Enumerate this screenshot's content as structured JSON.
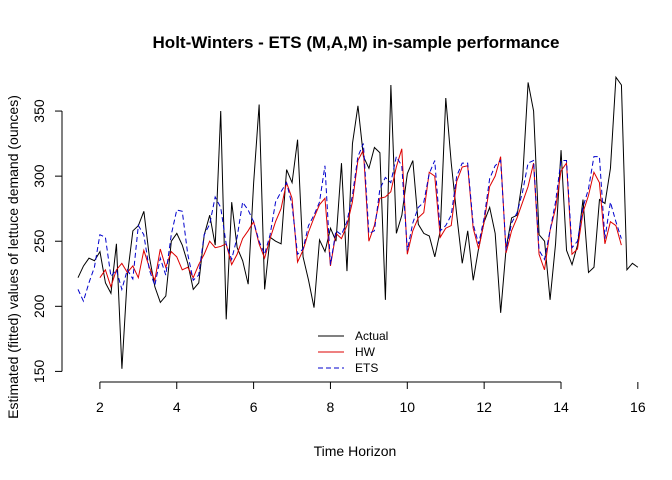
{
  "chart_data": {
    "type": "line",
    "title": "Holt-Winters - ETS (M,A,M) in-sample performance",
    "xlabel": "Time Horizon",
    "ylabel": "Estimated (fitted) values of lettuce demand (ounces)",
    "xlim": [
      1.43,
      15.9
    ],
    "ylim": [
      148,
      380
    ],
    "xticks": [
      2,
      4,
      6,
      8,
      10,
      12,
      14,
      16
    ],
    "yticks": [
      150,
      200,
      250,
      300,
      350
    ],
    "grid": false,
    "legend": {
      "placement": "bottom-center",
      "entries": [
        {
          "label": "Actual",
          "color": "#000000",
          "dash": "solid"
        },
        {
          "label": "HW",
          "color": "#dd0000",
          "dash": "solid"
        },
        {
          "label": "ETS",
          "color": "#0000cc",
          "dash": "dashed"
        }
      ]
    },
    "x_start": 1.43,
    "x_step": 0.142857,
    "series": [
      {
        "name": "Actual",
        "color": "#000000",
        "dash": "solid",
        "values": [
          222,
          231,
          237,
          235,
          242,
          218,
          210,
          248,
          152,
          224,
          258,
          262,
          273,
          238,
          215,
          203,
          208,
          250,
          256,
          247,
          233,
          213,
          218,
          255,
          270,
          247,
          350,
          190,
          280,
          245,
          235,
          217,
          295,
          355,
          213,
          253,
          250,
          248,
          305,
          295,
          328,
          238,
          220,
          199,
          251,
          242,
          260,
          250,
          310,
          227,
          325,
          354,
          315,
          306,
          322,
          318,
          205,
          370,
          256,
          270,
          302,
          312,
          263,
          256,
          254,
          238,
          258,
          360,
          310,
          270,
          233,
          258,
          220,
          245,
          265,
          276,
          256,
          195,
          245,
          268,
          270,
          298,
          372,
          350,
          255,
          250,
          205,
          248,
          320,
          243,
          232,
          247,
          282,
          226,
          230,
          282,
          279,
          306,
          376,
          370,
          228,
          233,
          230
        ]
      },
      {
        "name": "HW",
        "color": "#dd0000",
        "dash": "solid",
        "values": [
          null,
          null,
          null,
          null,
          null,
          null,
          null,
          null,
          null,
          null,
          null,
          null,
          null,
          null,
          null,
          null,
          null,
          null,
          null,
          null,
          null,
          null,
          null,
          null,
          null,
          null,
          null,
          null,
          null,
          null,
          null,
          null,
          null,
          null,
          null,
          null,
          null,
          null,
          null,
          null,
          null,
          null,
          null,
          null,
          null,
          null,
          null,
          null,
          null,
          null,
          null,
          null,
          null,
          null,
          null,
          null,
          null,
          null,
          null,
          null,
          null,
          null,
          null,
          null,
          null,
          null,
          null,
          null,
          null,
          null,
          null,
          null,
          null,
          null,
          null,
          null,
          null,
          null,
          null,
          null,
          null,
          null,
          null,
          null,
          null,
          null,
          null,
          null,
          null,
          null,
          null,
          null,
          null,
          null,
          null,
          null,
          null,
          null,
          null,
          null,
          null,
          null,
          null
        ],
        "values_list": [
          [
            2.0,
            222
          ],
          [
            2.143,
            228
          ],
          [
            2.286,
            215
          ],
          [
            2.429,
            228
          ],
          [
            2.571,
            233
          ],
          [
            2.714,
            226
          ],
          [
            2.857,
            231
          ],
          [
            3.0,
            222
          ],
          [
            3.143,
            243
          ],
          [
            3.286,
            230
          ],
          [
            3.429,
            220
          ],
          [
            3.571,
            244
          ],
          [
            3.714,
            230
          ],
          [
            3.857,
            242
          ],
          [
            4.0,
            238
          ],
          [
            4.143,
            228
          ],
          [
            4.286,
            230
          ],
          [
            4.429,
            222
          ],
          [
            4.571,
            232
          ],
          [
            4.714,
            240
          ],
          [
            4.857,
            250
          ],
          [
            5.0,
            245
          ],
          [
            5.143,
            246
          ],
          [
            5.286,
            248
          ],
          [
            5.429,
            232
          ],
          [
            5.571,
            240
          ],
          [
            5.714,
            252
          ],
          [
            5.857,
            258
          ],
          [
            6.0,
            265
          ],
          [
            6.143,
            248
          ],
          [
            6.286,
            237
          ],
          [
            6.429,
            252
          ],
          [
            6.571,
            265
          ],
          [
            6.714,
            275
          ],
          [
            6.857,
            295
          ],
          [
            7.0,
            283
          ],
          [
            7.143,
            234
          ],
          [
            7.286,
            243
          ],
          [
            7.429,
            257
          ],
          [
            7.571,
            268
          ],
          [
            7.714,
            278
          ],
          [
            7.857,
            283
          ],
          [
            8.0,
            231
          ],
          [
            8.143,
            256
          ],
          [
            8.286,
            252
          ],
          [
            8.429,
            262
          ],
          [
            8.571,
            280
          ],
          [
            8.714,
            312
          ],
          [
            8.857,
            320
          ],
          [
            9.0,
            250
          ],
          [
            9.143,
            262
          ],
          [
            9.286,
            283
          ],
          [
            9.429,
            284
          ],
          [
            9.571,
            288
          ],
          [
            9.714,
            307
          ],
          [
            9.857,
            321
          ],
          [
            10.0,
            240
          ],
          [
            10.143,
            258
          ],
          [
            10.286,
            268
          ],
          [
            10.429,
            272
          ],
          [
            10.571,
            303
          ],
          [
            10.714,
            300
          ],
          [
            10.857,
            253
          ],
          [
            11.0,
            260
          ],
          [
            11.143,
            262
          ],
          [
            11.286,
            296
          ],
          [
            11.429,
            307
          ],
          [
            11.571,
            308
          ],
          [
            11.714,
            260
          ],
          [
            11.857,
            244
          ],
          [
            12.0,
            265
          ],
          [
            12.143,
            292
          ],
          [
            12.286,
            300
          ],
          [
            12.429,
            315
          ],
          [
            12.571,
            241
          ],
          [
            12.714,
            258
          ],
          [
            12.857,
            268
          ],
          [
            13.0,
            280
          ],
          [
            13.143,
            292
          ],
          [
            13.286,
            310
          ],
          [
            13.429,
            240
          ],
          [
            13.571,
            228
          ],
          [
            13.714,
            258
          ],
          [
            13.857,
            275
          ],
          [
            14.0,
            304
          ],
          [
            14.143,
            310
          ],
          [
            14.286,
            240
          ],
          [
            14.429,
            244
          ],
          [
            14.571,
            272
          ],
          [
            14.714,
            285
          ],
          [
            14.857,
            303
          ],
          [
            15.0,
            295
          ],
          [
            15.143,
            248
          ],
          [
            15.286,
            265
          ],
          [
            15.429,
            262
          ],
          [
            15.571,
            247
          ]
        ]
      },
      {
        "name": "ETS",
        "color": "#0000cc",
        "dash": "dashed",
        "values_list": [
          [
            1.43,
            213
          ],
          [
            1.571,
            204
          ],
          [
            1.714,
            218
          ],
          [
            1.857,
            230
          ],
          [
            2.0,
            255
          ],
          [
            2.143,
            253
          ],
          [
            2.286,
            223
          ],
          [
            2.429,
            228
          ],
          [
            2.571,
            213
          ],
          [
            2.714,
            228
          ],
          [
            2.857,
            221
          ],
          [
            3.0,
            262
          ],
          [
            3.143,
            255
          ],
          [
            3.286,
            228
          ],
          [
            3.429,
            216
          ],
          [
            3.571,
            237
          ],
          [
            3.714,
            224
          ],
          [
            3.857,
            255
          ],
          [
            4.0,
            274
          ],
          [
            4.143,
            273
          ],
          [
            4.286,
            240
          ],
          [
            4.429,
            220
          ],
          [
            4.571,
            224
          ],
          [
            4.714,
            255
          ],
          [
            4.857,
            263
          ],
          [
            5.0,
            284
          ],
          [
            5.143,
            276
          ],
          [
            5.286,
            248
          ],
          [
            5.429,
            236
          ],
          [
            5.571,
            253
          ],
          [
            5.714,
            280
          ],
          [
            5.857,
            274
          ],
          [
            6.0,
            265
          ],
          [
            6.143,
            250
          ],
          [
            6.286,
            240
          ],
          [
            6.429,
            255
          ],
          [
            6.571,
            280
          ],
          [
            6.714,
            288
          ],
          [
            6.857,
            295
          ],
          [
            7.0,
            278
          ],
          [
            7.143,
            240
          ],
          [
            7.286,
            244
          ],
          [
            7.429,
            262
          ],
          [
            7.571,
            270
          ],
          [
            7.714,
            280
          ],
          [
            7.857,
            308
          ],
          [
            8.0,
            232
          ],
          [
            8.143,
            258
          ],
          [
            8.286,
            255
          ],
          [
            8.429,
            265
          ],
          [
            8.571,
            285
          ],
          [
            8.714,
            315
          ],
          [
            8.857,
            325
          ],
          [
            9.0,
            256
          ],
          [
            9.143,
            258
          ],
          [
            9.286,
            290
          ],
          [
            9.429,
            299
          ],
          [
            9.571,
            295
          ],
          [
            9.714,
            315
          ],
          [
            9.857,
            308
          ],
          [
            10.0,
            243
          ],
          [
            10.143,
            264
          ],
          [
            10.286,
            276
          ],
          [
            10.429,
            280
          ],
          [
            10.571,
            302
          ],
          [
            10.714,
            312
          ],
          [
            10.857,
            258
          ],
          [
            11.0,
            262
          ],
          [
            11.143,
            270
          ],
          [
            11.286,
            300
          ],
          [
            11.429,
            310
          ],
          [
            11.571,
            310
          ],
          [
            11.714,
            263
          ],
          [
            11.857,
            248
          ],
          [
            12.0,
            268
          ],
          [
            12.143,
            298
          ],
          [
            12.286,
            308
          ],
          [
            12.429,
            312
          ],
          [
            12.571,
            243
          ],
          [
            12.714,
            264
          ],
          [
            12.857,
            272
          ],
          [
            13.0,
            288
          ],
          [
            13.143,
            310
          ],
          [
            13.286,
            312
          ],
          [
            13.429,
            243
          ],
          [
            13.571,
            236
          ],
          [
            13.714,
            258
          ],
          [
            13.857,
            280
          ],
          [
            14.0,
            312
          ],
          [
            14.143,
            312
          ],
          [
            14.286,
            245
          ],
          [
            14.429,
            250
          ],
          [
            14.571,
            276
          ],
          [
            14.714,
            290
          ],
          [
            14.857,
            315
          ],
          [
            15.0,
            315
          ],
          [
            15.143,
            252
          ],
          [
            15.286,
            280
          ],
          [
            15.429,
            265
          ],
          [
            15.571,
            252
          ]
        ]
      }
    ]
  }
}
